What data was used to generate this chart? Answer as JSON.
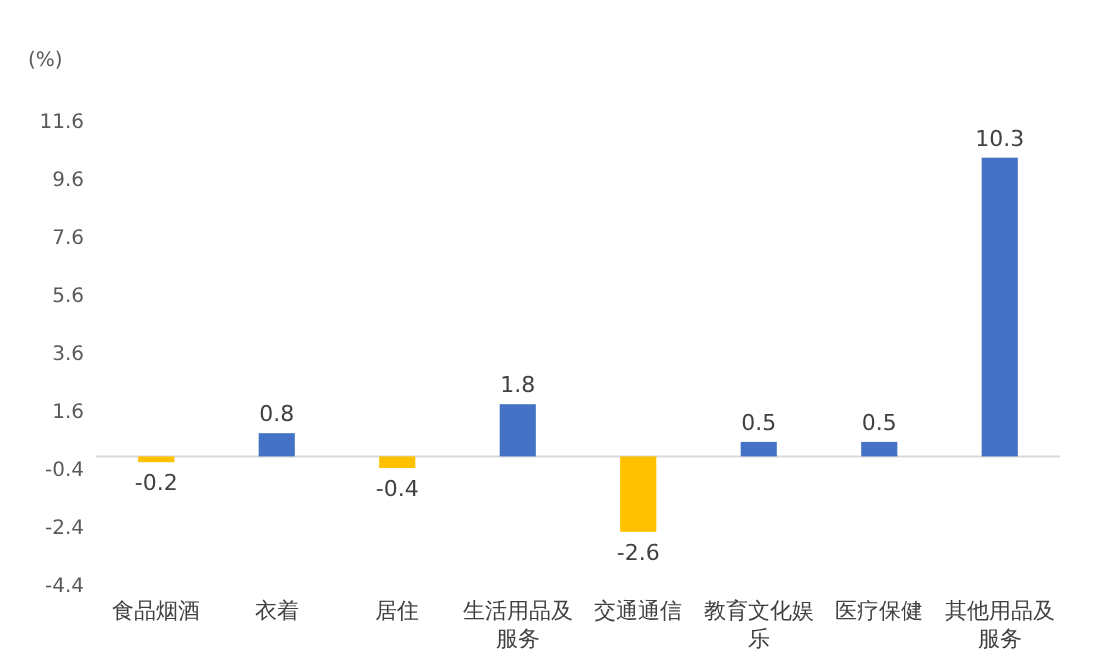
{
  "chart_data": {
    "type": "bar",
    "ylabel": "(%)",
    "categories": [
      "食品烟酒",
      "衣着",
      "居住",
      "生活用品及服务",
      "交通通信",
      "教育文化娱乐",
      "医疗保健",
      "其他用品及服务"
    ],
    "values": [
      -0.2,
      0.8,
      -0.4,
      1.8,
      -2.6,
      0.5,
      0.5,
      10.3
    ],
    "colors": [
      "#ffc000",
      "#4472c4",
      "#ffc000",
      "#4472c4",
      "#ffc000",
      "#4472c4",
      "#4472c4",
      "#4472c4"
    ],
    "ylim": [
      -4.4,
      11.6
    ],
    "yticks": [
      -4.4,
      -2.4,
      -0.4,
      1.6,
      3.6,
      5.6,
      7.6,
      9.6,
      11.6
    ],
    "data_labels": true,
    "grid": false
  }
}
